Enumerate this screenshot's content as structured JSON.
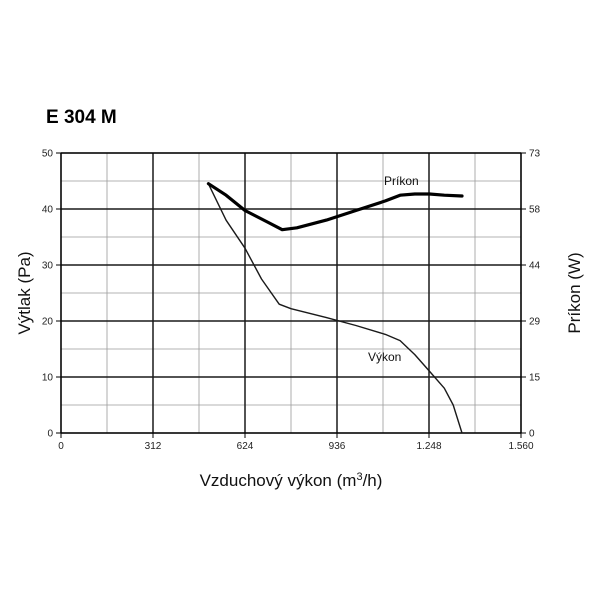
{
  "chart_data": {
    "type": "line",
    "title": "E 304 M",
    "xlabel_text": "Vzduchový výkon (m",
    "xlabel_sup": "3",
    "xlabel_tail": "/h)",
    "ylabel": "Výtlak (Pa)",
    "y2label": "Príkon (W)",
    "xlim": [
      0,
      1560
    ],
    "ylim": [
      0,
      50
    ],
    "y2lim": [
      0,
      73
    ],
    "x_ticks": [
      0,
      312,
      624,
      936,
      1248,
      1560
    ],
    "x_tick_labels": [
      "0",
      "312",
      "624",
      "936",
      "1.248",
      "1.560"
    ],
    "y_ticks": [
      0,
      10,
      20,
      30,
      40,
      50
    ],
    "y_tick_labels": [
      "0",
      "10",
      "20",
      "30",
      "40",
      "50"
    ],
    "y2_ticks": [
      0,
      14.6,
      29.2,
      43.8,
      58.4,
      73
    ],
    "y2_tick_labels": [
      "0",
      "15",
      "29",
      "44",
      "58",
      "73"
    ],
    "grid": true,
    "minor_grid": true,
    "series": [
      {
        "name": "Výkon",
        "axis": "left",
        "color": "#1a1a1a",
        "x": [
          500,
          560,
          624,
          680,
          740,
          780,
          900,
          1000,
          1100,
          1150,
          1200,
          1250,
          1300,
          1330,
          1360
        ],
        "y": [
          44.5,
          38,
          33,
          27.5,
          23,
          22.2,
          20.6,
          19.2,
          17.6,
          16.5,
          14,
          11,
          8,
          5,
          0
        ]
      },
      {
        "name": "Príkon",
        "axis": "right",
        "color": "#000000",
        "x": [
          500,
          560,
          624,
          700,
          750,
          800,
          900,
          1000,
          1100,
          1150,
          1200,
          1250,
          1300,
          1360
        ],
        "y": [
          65,
          62,
          58,
          55,
          53,
          53.5,
          55.5,
          58,
          60.5,
          62,
          62.3,
          62.3,
          62,
          61.8
        ]
      }
    ]
  }
}
